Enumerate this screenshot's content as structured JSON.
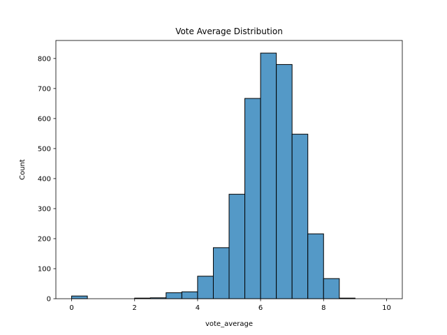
{
  "chart_data": {
    "type": "bar",
    "title": "Vote Average Distribution",
    "xlabel": "vote_average",
    "ylabel": "Count",
    "xlim": [
      -0.5,
      10.5
    ],
    "ylim": [
      0,
      860
    ],
    "xticks": [
      0,
      2,
      4,
      6,
      8,
      10
    ],
    "yticks": [
      0,
      100,
      200,
      300,
      400,
      500,
      600,
      700,
      800
    ],
    "bin_width": 0.5,
    "bins": [
      {
        "x0": 0.0,
        "x1": 0.5,
        "count": 9
      },
      {
        "x0": 0.5,
        "x1": 1.0,
        "count": 0
      },
      {
        "x0": 1.0,
        "x1": 1.5,
        "count": 0
      },
      {
        "x0": 1.5,
        "x1": 2.0,
        "count": 0
      },
      {
        "x0": 2.0,
        "x1": 2.5,
        "count": 2
      },
      {
        "x0": 2.5,
        "x1": 3.0,
        "count": 3
      },
      {
        "x0": 3.0,
        "x1": 3.5,
        "count": 20
      },
      {
        "x0": 3.5,
        "x1": 4.0,
        "count": 23
      },
      {
        "x0": 4.0,
        "x1": 4.5,
        "count": 75
      },
      {
        "x0": 4.5,
        "x1": 5.0,
        "count": 170
      },
      {
        "x0": 5.0,
        "x1": 5.5,
        "count": 348
      },
      {
        "x0": 5.5,
        "x1": 6.0,
        "count": 667
      },
      {
        "x0": 6.0,
        "x1": 6.5,
        "count": 818
      },
      {
        "x0": 6.5,
        "x1": 7.0,
        "count": 780
      },
      {
        "x0": 7.0,
        "x1": 7.5,
        "count": 548
      },
      {
        "x0": 7.5,
        "x1": 8.0,
        "count": 216
      },
      {
        "x0": 8.0,
        "x1": 8.5,
        "count": 67
      },
      {
        "x0": 8.5,
        "x1": 9.0,
        "count": 2
      },
      {
        "x0": 9.0,
        "x1": 9.5,
        "count": 0
      },
      {
        "x0": 9.5,
        "x1": 10.0,
        "count": 0
      }
    ],
    "bar_color": "#5499c7",
    "edge_color": "#000000",
    "grid": false,
    "legend": "none"
  }
}
